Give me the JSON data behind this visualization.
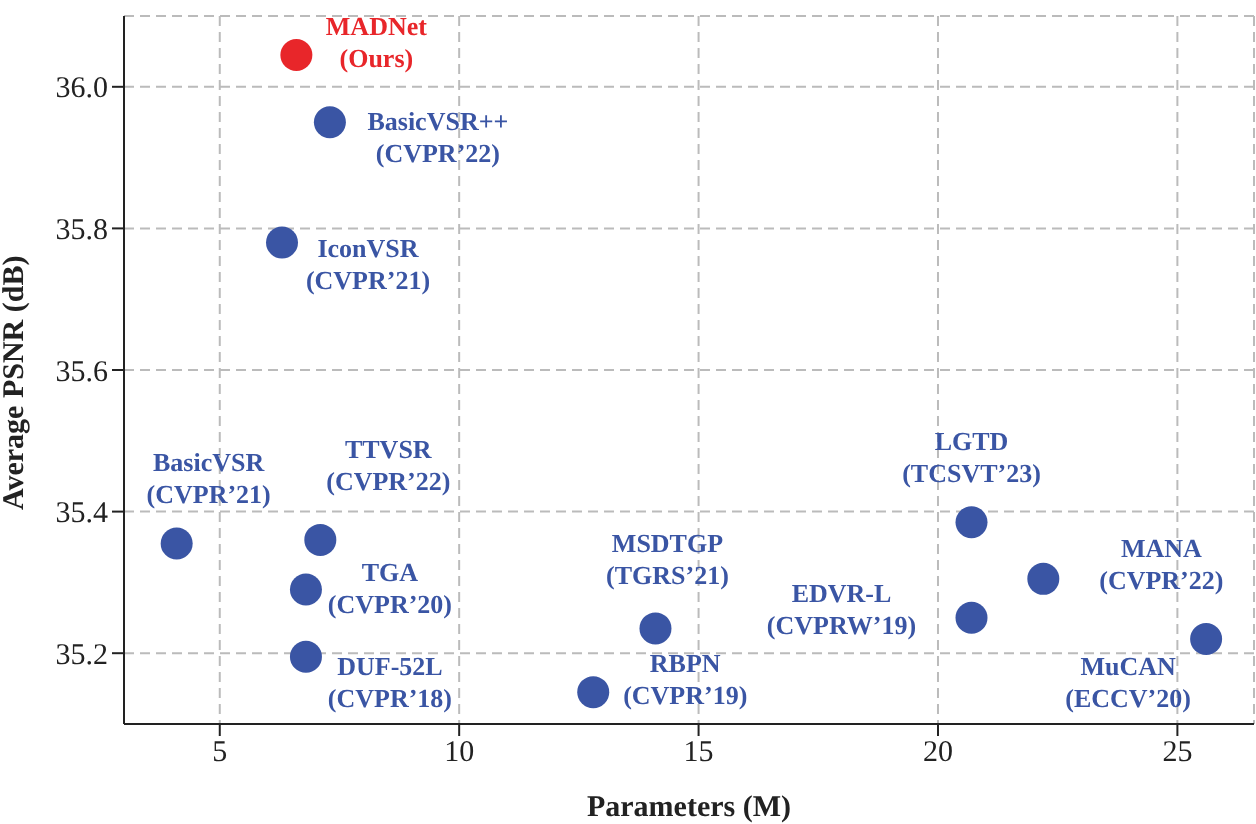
{
  "chart_data": {
    "type": "scatter",
    "xlabel": "Parameters (M)",
    "ylabel": "Average PSNR (dB)",
    "x": [
      6.6,
      7.3,
      6.3,
      4.1,
      7.1,
      6.8,
      6.8,
      12.8,
      14.1,
      20.7,
      20.7,
      22.2,
      25.6
    ],
    "values": [
      36.045,
      35.95,
      35.78,
      35.355,
      35.36,
      35.29,
      35.195,
      35.145,
      35.235,
      35.385,
      35.25,
      35.305,
      35.22
    ],
    "colors": [
      "#e8262a",
      "#3a55a4",
      "#3a55a4",
      "#3a55a4",
      "#3a55a4",
      "#3a55a4",
      "#3a55a4",
      "#3a55a4",
      "#3a55a4",
      "#3a55a4",
      "#3a55a4",
      "#3a55a4",
      "#3a55a4"
    ],
    "marker": "circle",
    "xlim": [
      3,
      26.6
    ],
    "ylim": [
      35.1,
      36.1
    ],
    "xticks": [
      5,
      10,
      15,
      20,
      25
    ],
    "yticks": [
      35.2,
      35.4,
      35.6,
      35.8,
      {
        "value": 36,
        "label": "36.0"
      }
    ],
    "grid": true,
    "annotations": [
      {
        "text": "MADNet (Ours)",
        "x": 6.6,
        "y": 36.045
      },
      {
        "text": "BasicVSR++ (CVPR’22)",
        "x": 7.3,
        "y": 35.95
      },
      {
        "text": "IconVSR (CVPR’21)",
        "x": 6.3,
        "y": 35.78
      },
      {
        "text": "BasicVSR (CVPR’21)",
        "x": 4.1,
        "y": 35.355
      },
      {
        "text": "TTVSR (CVPR’22)",
        "x": 7.1,
        "y": 35.36
      },
      {
        "text": "TGA (CVPR’20)",
        "x": 6.8,
        "y": 35.29
      },
      {
        "text": "DUF-52L (CVPR’18)",
        "x": 6.8,
        "y": 35.195
      },
      {
        "text": "RBPN (CVPR’19)",
        "x": 12.8,
        "y": 35.145
      },
      {
        "text": "MSDTGP (TGRS’21)",
        "x": 14.1,
        "y": 35.235
      },
      {
        "text": "LGTD (TCSVT’23)",
        "x": 20.7,
        "y": 35.385
      },
      {
        "text": "EDVR-L (CVPRW’19)",
        "x": 20.7,
        "y": 35.25
      },
      {
        "text": "MANA (CVPR’22)",
        "x": 22.2,
        "y": 35.305
      },
      {
        "text": "MuCAN (ECCV’20)",
        "x": 25.6,
        "y": 35.22
      }
    ]
  }
}
